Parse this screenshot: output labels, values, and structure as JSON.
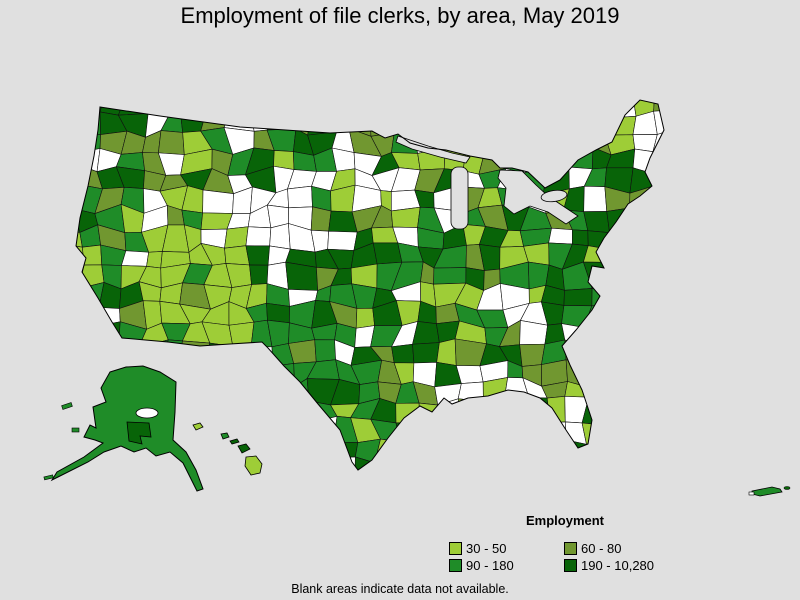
{
  "title": "Employment of file clerks, by area, May 2019",
  "legend": {
    "title": "Employment",
    "items": [
      {
        "label": "30 - 50",
        "color": "#9ECD37"
      },
      {
        "label": "60 - 80",
        "color": "#719730"
      },
      {
        "label": "90 - 180",
        "color": "#1F8C28"
      },
      {
        "label": "190 - 10,280",
        "color": "#086408"
      }
    ]
  },
  "footnote": "Blank areas indicate data not available.",
  "map": {
    "no_data_color": "#FFFFFF",
    "background_color": "#E0E0E0",
    "border_color": "#000000"
  },
  "chart_data": {
    "type": "heatmap",
    "subtype": "choropleth-us-map",
    "title": "Employment of file clerks, by area, May 2019",
    "legend_title": "Employment",
    "legend_position": "bottom-right",
    "measure": "Employment of file clerks",
    "period": "May 2019",
    "bins": [
      {
        "label": "30 - 50",
        "min": 30,
        "max": 50,
        "color": "#9ECD37"
      },
      {
        "label": "60 - 80",
        "min": 60,
        "max": 80,
        "color": "#719730"
      },
      {
        "label": "90 - 180",
        "min": 90,
        "max": 180,
        "color": "#1F8C28"
      },
      {
        "label": "190 - 10,280",
        "min": 190,
        "max": 10280,
        "color": "#086408"
      }
    ],
    "no_data": {
      "note": "Blank areas indicate data not available.",
      "color": "#FFFFFF"
    },
    "regions_shown": [
      "Contiguous United States",
      "Alaska",
      "Hawaii",
      "Puerto Rico"
    ]
  }
}
